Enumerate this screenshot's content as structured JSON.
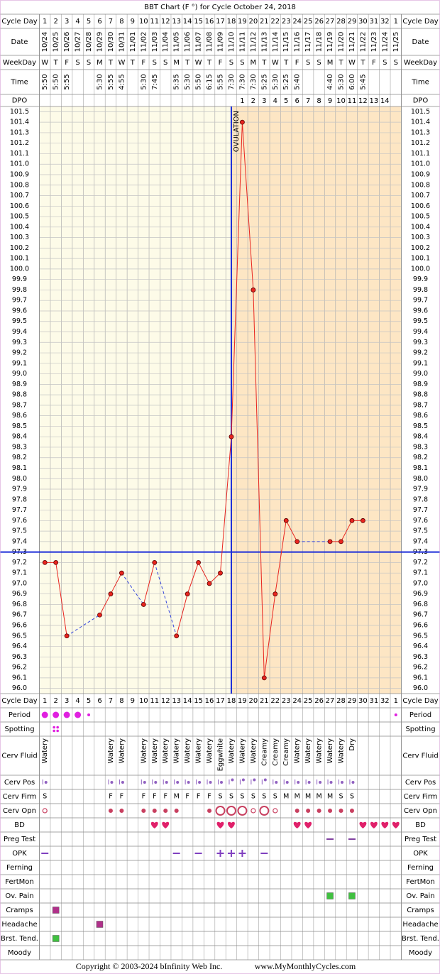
{
  "title": "BBT Chart (F °) for Cycle October 24, 2018",
  "header_labels": [
    "Cycle Day",
    "Date",
    "WeekDay",
    "Time",
    "DPO"
  ],
  "dates": [
    "10/24",
    "10/25",
    "10/26",
    "10/27",
    "10/28",
    "10/29",
    "10/30",
    "10/31",
    "11/01",
    "11/02",
    "11/03",
    "11/04",
    "11/05",
    "11/06",
    "11/07",
    "11/08",
    "11/09",
    "11/10",
    "11/11",
    "11/12",
    "11/13",
    "11/14",
    "11/15",
    "11/16",
    "11/17",
    "11/18",
    "11/19",
    "11/20",
    "11/21",
    "11/22",
    "11/23",
    "11/24",
    "11/25"
  ],
  "weekdays": [
    "W",
    "T",
    "F",
    "S",
    "S",
    "M",
    "T",
    "W",
    "T",
    "F",
    "S",
    "S",
    "M",
    "T",
    "W",
    "T",
    "F",
    "S",
    "S",
    "M",
    "T",
    "W",
    "T",
    "F",
    "S",
    "S",
    "M",
    "T",
    "W",
    "T",
    "F",
    "S",
    "S"
  ],
  "times": [
    "5:50",
    "5:50",
    "5:55",
    null,
    null,
    "5:30",
    "5:55",
    "4:55",
    null,
    "5:30",
    "7:45",
    null,
    "5:35",
    "5:30",
    "5:50",
    "6:15",
    "5:55",
    "7:30",
    "7:30",
    "7:30",
    "5:25",
    "5:30",
    "5:25",
    "5:40",
    null,
    null,
    "4:40",
    "5:30",
    "6:00",
    "5:45",
    null,
    null,
    null
  ],
  "dpo": [
    null,
    null,
    null,
    null,
    null,
    null,
    null,
    null,
    null,
    null,
    null,
    null,
    null,
    null,
    null,
    null,
    null,
    null,
    1,
    2,
    3,
    4,
    5,
    6,
    7,
    8,
    9,
    10,
    11,
    12,
    13,
    14,
    null
  ],
  "chart_data": {
    "type": "line",
    "categories": [
      1,
      2,
      3,
      4,
      5,
      6,
      7,
      8,
      9,
      10,
      11,
      12,
      13,
      14,
      15,
      16,
      17,
      18,
      19,
      20,
      21,
      22,
      23,
      24,
      25,
      26,
      27,
      28,
      29,
      30,
      31,
      32,
      1
    ],
    "values": [
      97.2,
      97.2,
      96.5,
      null,
      null,
      96.7,
      96.9,
      97.1,
      null,
      96.8,
      97.2,
      null,
      96.5,
      96.9,
      97.2,
      97.0,
      97.1,
      98.4,
      101.4,
      99.8,
      96.1,
      96.9,
      97.6,
      97.4,
      null,
      null,
      97.4,
      97.4,
      97.6,
      97.6,
      null,
      null,
      null
    ],
    "ylim": [
      95.95,
      101.55
    ],
    "yticks": [
      101.5,
      101.4,
      101.3,
      101.2,
      101.1,
      {
        "value": 101,
        "label": "101.0"
      },
      100.9,
      100.8,
      100.7,
      100.6,
      100.5,
      100.4,
      100.3,
      100.2,
      100.1,
      {
        "value": 100,
        "label": "100.0"
      },
      99.9,
      99.8,
      99.7,
      99.6,
      99.5,
      99.4,
      99.3,
      99.2,
      99.1,
      {
        "value": 99,
        "label": "99.0"
      },
      98.9,
      98.8,
      98.7,
      98.6,
      98.5,
      98.4,
      98.3,
      98.2,
      98.1,
      {
        "value": 98,
        "label": "98.0"
      },
      97.9,
      97.8,
      97.7,
      97.6,
      97.5,
      97.4,
      97.3,
      97.2,
      97.1,
      {
        "value": 97,
        "label": "97.0"
      },
      96.9,
      96.8,
      96.7,
      96.6,
      96.5,
      96.4,
      96.3,
      96.2,
      96.1,
      {
        "value": 96,
        "label": "96.0"
      }
    ],
    "grid": true,
    "color": "#e8251f",
    "gap_color": "#3344dd",
    "coverline": 97.3,
    "ovulation_day": 18,
    "ovulation_label": "OVULATION",
    "marker_color": "#1a2ad8",
    "shade_color": "#fde6c4",
    "background": "#fdfbe8"
  },
  "rows": [
    {
      "label": "Period",
      "color": "#e020e0",
      "marks": [
        "dot-large",
        "dot-large",
        "dot-large",
        "dot-large",
        "dot-small",
        null,
        null,
        null,
        null,
        null,
        null,
        null,
        null,
        null,
        null,
        null,
        null,
        null,
        null,
        null,
        null,
        null,
        null,
        null,
        null,
        null,
        null,
        null,
        null,
        null,
        null,
        null,
        "dot-small"
      ]
    },
    {
      "label": "Spotting",
      "color": "#e020e0",
      "marks": [
        null,
        "dots-four",
        null,
        null,
        null,
        null,
        null,
        null,
        null,
        null,
        null,
        null,
        null,
        null,
        null,
        null,
        null,
        null,
        null,
        null,
        null,
        null,
        null,
        null,
        null,
        null,
        null,
        null,
        null,
        null,
        null,
        null,
        null
      ]
    },
    {
      "label": "Cerv Fluid",
      "color": "#000000",
      "texts": [
        "Watery",
        null,
        null,
        null,
        null,
        null,
        "Watery",
        "Watery",
        null,
        "Watery",
        "Watery",
        "Watery",
        "Watery",
        "Watery",
        "Watery",
        "Watery",
        "Eggwhite",
        "Watery",
        "Watery",
        "Watery",
        "Creamy",
        "Creamy",
        "Creamy",
        "Watery",
        "Watery",
        "Watery",
        "Watery",
        "Watery",
        "Dry",
        null,
        null,
        null,
        null
      ]
    },
    {
      "label": "Cerv Pos",
      "color": "#9060c0",
      "marks": [
        "pos",
        null,
        null,
        null,
        null,
        null,
        "pos",
        "pos",
        null,
        "pos",
        "pos",
        "pos",
        "pos",
        "pos",
        "pos",
        "pos",
        "pos",
        "pos-high",
        "pos-high",
        "pos-high",
        "pos-high",
        "pos",
        "pos",
        "pos",
        "pos",
        "pos",
        "pos",
        "pos",
        "pos",
        null,
        null,
        null,
        null
      ]
    },
    {
      "label": "Cerv Firm",
      "color": "#9060c0",
      "texts": [
        "S",
        null,
        null,
        null,
        null,
        null,
        "F",
        "F",
        null,
        "F",
        "F",
        "F",
        "M",
        "F",
        "F",
        "F",
        "S",
        "S",
        "S",
        "S",
        "S",
        "S",
        "M",
        "M",
        "M",
        "M",
        "M",
        "S",
        "S",
        null,
        null,
        null,
        null
      ]
    },
    {
      "label": "Cerv Opn",
      "color": "#c84060",
      "marks": [
        "ring-small",
        null,
        null,
        null,
        null,
        null,
        "dot",
        "dot",
        null,
        "dot",
        "dot",
        "dot",
        "dot",
        null,
        null,
        "dot",
        "ring-large",
        "ring-large",
        "ring-large",
        "ring-small",
        "ring-large",
        "ring-small",
        null,
        "dot",
        "dot",
        "dot",
        "dot",
        "dot",
        "dot",
        null,
        null,
        null,
        null
      ]
    },
    {
      "label": "BD",
      "color": "#e0206a",
      "marks": [
        null,
        null,
        null,
        null,
        null,
        null,
        null,
        null,
        null,
        null,
        "heart",
        "heart",
        null,
        null,
        null,
        null,
        "heart",
        "heart",
        null,
        null,
        null,
        null,
        null,
        "heart",
        "heart",
        null,
        null,
        null,
        null,
        "heart",
        "heart",
        "heart",
        "heart"
      ]
    },
    {
      "label": "Preg Test",
      "color": "#8040a0",
      "marks": [
        null,
        null,
        null,
        null,
        null,
        null,
        null,
        null,
        null,
        null,
        null,
        null,
        null,
        null,
        null,
        null,
        null,
        null,
        null,
        null,
        null,
        null,
        null,
        null,
        null,
        null,
        "dash",
        null,
        "dash",
        null,
        null,
        null,
        null
      ]
    },
    {
      "label": "OPK",
      "color": "#8040c0",
      "marks": [
        "dash",
        null,
        null,
        null,
        null,
        null,
        null,
        null,
        null,
        null,
        null,
        null,
        "dash",
        null,
        "dash",
        null,
        "plus",
        "plus",
        "plus",
        null,
        "dash",
        null,
        null,
        null,
        null,
        null,
        null,
        null,
        null,
        null,
        null,
        null,
        null
      ]
    },
    {
      "label": "Ferning"
    },
    {
      "label": "FertMon"
    },
    {
      "label": "Ov. Pain",
      "color": "#40c040",
      "marks": [
        null,
        null,
        null,
        null,
        null,
        null,
        null,
        null,
        null,
        null,
        null,
        null,
        null,
        null,
        null,
        null,
        null,
        null,
        null,
        null,
        null,
        null,
        null,
        null,
        null,
        null,
        "square",
        null,
        "square",
        null,
        null,
        null,
        null
      ]
    },
    {
      "label": "Cramps",
      "color": "#b0308a",
      "marks": [
        null,
        "square",
        null,
        null,
        null,
        null,
        null,
        null,
        null,
        null,
        null,
        null,
        null,
        null,
        null,
        null,
        null,
        null,
        null,
        null,
        null,
        null,
        null,
        null,
        null,
        null,
        null,
        null,
        null,
        null,
        null,
        null,
        null
      ]
    },
    {
      "label": "Headache",
      "color": "#b0308a",
      "marks": [
        null,
        null,
        null,
        null,
        null,
        "square",
        null,
        null,
        null,
        null,
        null,
        null,
        null,
        null,
        null,
        null,
        null,
        null,
        null,
        null,
        null,
        null,
        null,
        null,
        null,
        null,
        null,
        null,
        null,
        null,
        null,
        null,
        null
      ]
    },
    {
      "label": "Brst. Tend.",
      "color": "#40c040",
      "marks": [
        null,
        "square",
        null,
        null,
        null,
        null,
        null,
        null,
        null,
        null,
        null,
        null,
        null,
        null,
        null,
        null,
        null,
        null,
        null,
        null,
        null,
        null,
        null,
        null,
        null,
        null,
        null,
        null,
        null,
        null,
        null,
        null,
        null
      ]
    },
    {
      "label": "Moody"
    }
  ],
  "footer": {
    "copyright": "Copyright © 2003-2024 bInfinity Web Inc.",
    "site": "www.MyMonthlyCycles.com"
  }
}
